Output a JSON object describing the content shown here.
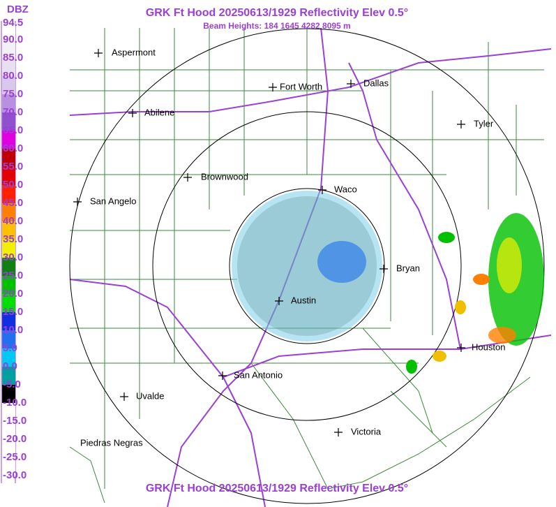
{
  "header": {
    "title": "GRK Ft Hood 20250613/1929 Reflectivity Elev 0.5°",
    "subtitle": "Beam Heights: 184 1645 4282 8095 m"
  },
  "footer": {
    "title": "GRK Ft Hood 20250613/1929 Reflectivity Elev 0.5°"
  },
  "scale": {
    "unit": "DBZ",
    "labels": [
      "94.5",
      "90.0",
      "85.0",
      "80.0",
      "75.0",
      "70.0",
      "65.0",
      "60.0",
      "55.0",
      "50.0",
      "45.0",
      "40.0",
      "35.0",
      "30.0",
      "25.0",
      "20.0",
      "15.0",
      "10.0",
      "5.0",
      "0.0",
      "-5.0",
      "-10.0",
      "-15.0",
      "-20.0",
      "-25.0",
      "-30.0"
    ],
    "colors": [
      "#ffffff",
      "#f4f0f8",
      "#e8e0f0",
      "#d8c8ec",
      "#b890e0",
      "#9050d0",
      "#e000e0",
      "#c00000",
      "#e00000",
      "#ff2000",
      "#ff8000",
      "#ffc000",
      "#f0f000",
      "#108010",
      "#00c000",
      "#00e000",
      "#1030e0",
      "#2070f0",
      "#00c8f0",
      "#00a0a0",
      "#000000",
      "#ffffff",
      "#ffffff",
      "#ffffff",
      "#ffffff"
    ]
  },
  "cities": [
    "Aspermont",
    "Fort Worth",
    "Dallas",
    "Abilene",
    "Tyler",
    "Brownwood",
    "Waco",
    "San Angelo",
    "Bryan",
    "Austin",
    "Houston",
    "San Antonio",
    "Uvalde",
    "Victoria",
    "Piedras Negras"
  ]
}
